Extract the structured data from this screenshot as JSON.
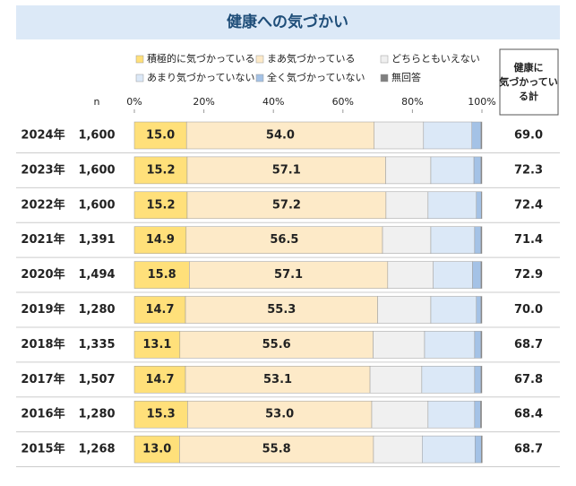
{
  "chart_data": {
    "type": "stacked-bar",
    "title": "健康への気づかい",
    "xlim": [
      0,
      100
    ],
    "xticks": [
      {
        "value": 0,
        "label": "0%"
      },
      {
        "value": 20,
        "label": "20%"
      },
      {
        "value": 40,
        "label": "40%"
      },
      {
        "value": 60,
        "label": "60%"
      },
      {
        "value": 80,
        "label": "80%"
      },
      {
        "value": 100,
        "label": "100%"
      }
    ],
    "categories": [
      "2024年",
      "2023年",
      "2022年",
      "2021年",
      "2020年",
      "2019年",
      "2018年",
      "2017年",
      "2016年",
      "2015年"
    ],
    "n": {
      "header": "n",
      "values": [
        1600,
        1600,
        1600,
        1391,
        1494,
        1280,
        1335,
        1507,
        1280,
        1268
      ],
      "labels": [
        "1,600",
        "1,600",
        "1,600",
        "1,391",
        "1,494",
        "1,280",
        "1,335",
        "1,507",
        "1,280",
        "1,268"
      ]
    },
    "totals": {
      "header": [
        "健康に",
        "気づかってい",
        "る計"
      ],
      "values": [
        69.0,
        72.3,
        72.4,
        71.4,
        72.9,
        70.0,
        68.7,
        67.8,
        68.4,
        68.7
      ],
      "value_labels": [
        "69.0",
        "72.3",
        "72.4",
        "71.4",
        "72.9",
        "70.0",
        "68.7",
        "67.8",
        "68.4",
        "68.7"
      ]
    },
    "series": [
      {
        "name": "積極的に気づかっている",
        "color": "#ffe07a",
        "values": [
          15.0,
          15.2,
          15.2,
          14.9,
          15.8,
          14.7,
          13.1,
          14.7,
          15.3,
          13.0
        ],
        "value_labels": [
          "15.0",
          "15.2",
          "15.2",
          "14.9",
          "15.8",
          "14.7",
          "13.1",
          "14.7",
          "15.3",
          "13.0"
        ]
      },
      {
        "name": "まあ気づかっている",
        "color": "#fdeac8",
        "values": [
          54.0,
          57.1,
          57.2,
          56.5,
          57.1,
          55.3,
          55.6,
          53.1,
          53.0,
          55.8
        ],
        "value_labels": [
          "54.0",
          "57.1",
          "57.2",
          "56.5",
          "57.1",
          "55.3",
          "55.6",
          "53.1",
          "53.0",
          "55.8"
        ]
      },
      {
        "name": "どちらともいえない",
        "color": "#f0f0f0",
        "values": [
          14.2,
          13.0,
          12.1,
          13.9,
          13.1,
          15.3,
          14.8,
          14.9,
          16.2,
          14.0
        ]
      },
      {
        "name": "あまり気づかっていない",
        "color": "#dbe8f7",
        "values": [
          13.9,
          12.4,
          13.9,
          12.6,
          11.3,
          13.1,
          14.4,
          15.2,
          13.4,
          15.2
        ]
      },
      {
        "name": "全く気づかっていない",
        "color": "#a4c2e6",
        "values": [
          2.6,
          2.0,
          1.4,
          1.8,
          2.4,
          1.3,
          1.8,
          1.8,
          1.7,
          1.8
        ]
      },
      {
        "name": "無回答",
        "color": "#7f7f7f",
        "values": [
          0.3,
          0.3,
          0.2,
          0.3,
          0.3,
          0.3,
          0.3,
          0.3,
          0.3,
          0.3
        ]
      }
    ]
  }
}
